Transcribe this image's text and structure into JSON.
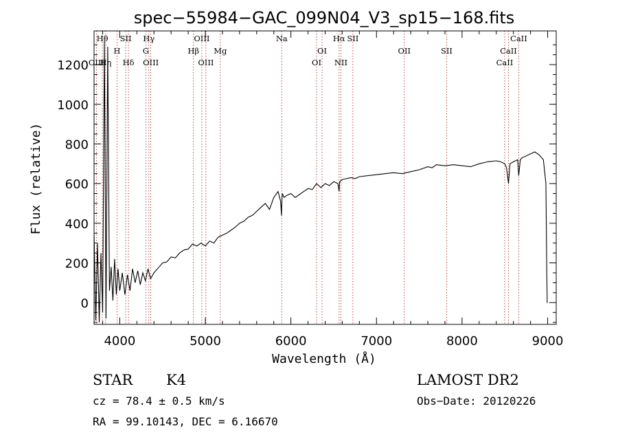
{
  "chart_data": {
    "type": "line",
    "title": "spec−55984−GAC_099N04_V3_sp15−168.fits",
    "xlabel": "Wavelength (Å)",
    "ylabel": "Flux (relative)",
    "xlim": [
      3700,
      9100
    ],
    "ylim": [
      -110,
      1370
    ],
    "xticks": [
      4000,
      5000,
      6000,
      7000,
      8000,
      9000
    ],
    "yticks": [
      0,
      200,
      400,
      600,
      800,
      1000,
      1200
    ],
    "grid": false,
    "series": [
      {
        "x": [
          3700,
          3720,
          3740,
          3760,
          3780,
          3800,
          3820,
          3840,
          3860,
          3880,
          3900,
          3920,
          3940,
          3960,
          3980,
          4000,
          4030,
          4060,
          4090,
          4120,
          4150,
          4180,
          4210,
          4240,
          4270,
          4300,
          4330,
          4360,
          4400,
          4450,
          4500,
          4550,
          4600,
          4650,
          4700,
          4750,
          4800,
          4850,
          4900,
          4950,
          5000,
          5050,
          5100,
          5150,
          5200,
          5250,
          5300,
          5350,
          5400,
          5450,
          5500,
          5550,
          5600,
          5650,
          5700,
          5750,
          5800,
          5850,
          5880,
          5890,
          5895,
          5900,
          5920,
          5950,
          6000,
          6050,
          6100,
          6150,
          6200,
          6250,
          6300,
          6350,
          6400,
          6450,
          6500,
          6550,
          6563,
          6570,
          6600,
          6650,
          6700,
          6750,
          6800,
          6900,
          7000,
          7100,
          7200,
          7300,
          7400,
          7500,
          7600,
          7650,
          7700,
          7800,
          7900,
          8000,
          8100,
          8200,
          8300,
          8400,
          8450,
          8498,
          8520,
          8542,
          8560,
          8600,
          8650,
          8662,
          8680,
          8700,
          8750,
          8800,
          8850,
          8900,
          8950,
          8980,
          8990,
          8995,
          9000
        ],
        "y": [
          350,
          -90,
          300,
          -100,
          250,
          -50,
          1320,
          -80,
          1290,
          60,
          180,
          10,
          220,
          40,
          170,
          60,
          150,
          40,
          140,
          60,
          170,
          100,
          160,
          90,
          150,
          110,
          170,
          120,
          150,
          175,
          200,
          205,
          230,
          225,
          250,
          265,
          270,
          295,
          285,
          300,
          285,
          310,
          300,
          330,
          340,
          350,
          365,
          380,
          400,
          410,
          430,
          440,
          460,
          480,
          500,
          470,
          530,
          560,
          510,
          440,
          520,
          550,
          530,
          540,
          550,
          530,
          545,
          560,
          575,
          570,
          600,
          580,
          600,
          590,
          610,
          600,
          560,
          610,
          620,
          625,
          630,
          625,
          635,
          640,
          645,
          650,
          655,
          650,
          660,
          670,
          685,
          680,
          695,
          690,
          695,
          690,
          685,
          700,
          710,
          715,
          710,
          700,
          680,
          600,
          700,
          710,
          720,
          640,
          720,
          730,
          740,
          750,
          760,
          745,
          720,
          600,
          150,
          0,
          0
        ]
      }
    ],
    "line_marks": [
      {
        "label": "Hθ",
        "x": 3797,
        "row": 1
      },
      {
        "label": "OIII",
        "x": 3727,
        "row": 3
      },
      {
        "label": "Hη",
        "x": 3835,
        "row": 3
      },
      {
        "label": "H",
        "x": 3968,
        "row": 2
      },
      {
        "label": "SII",
        "x": 4070,
        "row": 1
      },
      {
        "label": "Hδ",
        "x": 4102,
        "row": 3
      },
      {
        "label": "Hγ",
        "x": 4340,
        "row": 1
      },
      {
        "label": "G",
        "x": 4305,
        "row": 2
      },
      {
        "label": "OIII",
        "x": 4363,
        "row": 3
      },
      {
        "label": "OIII",
        "x": 4959,
        "row": 1
      },
      {
        "label": "Hβ",
        "x": 4861,
        "row": 2
      },
      {
        "label": "OIII",
        "x": 5007,
        "row": 3
      },
      {
        "label": "Mg",
        "x": 5175,
        "row": 2
      },
      {
        "label": "Na",
        "x": 5893,
        "row": 1
      },
      {
        "label": "OI",
        "x": 6364,
        "row": 2
      },
      {
        "label": "OI",
        "x": 6300,
        "row": 3
      },
      {
        "label": "Hα",
        "x": 6563,
        "row": 1
      },
      {
        "label": "SII",
        "x": 6724,
        "row": 1
      },
      {
        "label": "NII",
        "x": 6584,
        "row": 3
      },
      {
        "label": "OII",
        "x": 7325,
        "row": 2
      },
      {
        "label": "SII",
        "x": 7820,
        "row": 2
      },
      {
        "label": "CaII",
        "x": 8662,
        "row": 1
      },
      {
        "label": "CaII",
        "x": 8542,
        "row": 2
      },
      {
        "label": "CaII",
        "x": 8498,
        "row": 3
      }
    ]
  },
  "info": {
    "class_label": "STAR",
    "subclass_label": "K4",
    "survey_label": "LAMOST DR2",
    "cz_line": "cz = 78.4 ± 0.5 km/s",
    "obs_date_line": "Obs−Date: 20120226",
    "radec_line": "RA =  99.10143, DEC =   6.16670"
  }
}
